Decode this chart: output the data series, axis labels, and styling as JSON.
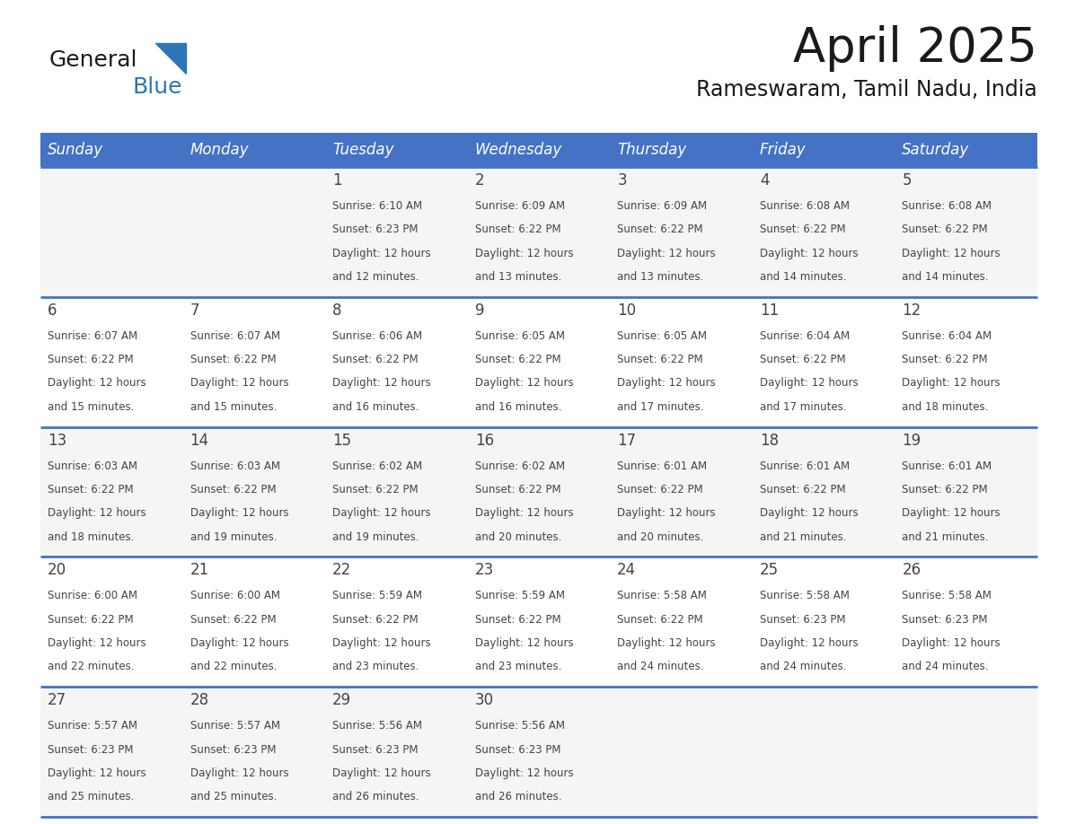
{
  "title": "April 2025",
  "subtitle": "Rameswaram, Tamil Nadu, India",
  "days_of_week": [
    "Sunday",
    "Monday",
    "Tuesday",
    "Wednesday",
    "Thursday",
    "Friday",
    "Saturday"
  ],
  "header_bg_color": "#4472C4",
  "header_text_color": "#FFFFFF",
  "cell_bg_color": "#F5F5F5",
  "cell_bg_white": "#FFFFFF",
  "separator_color": "#4472C4",
  "text_color": "#444444",
  "logo_general_color": "#1a1a1a",
  "logo_blue_color": "#2E75B6",
  "logo_tri_color": "#2E75B6",
  "calendar_data": [
    {
      "day": 1,
      "col": 2,
      "row": 0,
      "sunrise": "6:10 AM",
      "sunset": "6:23 PM",
      "daylight_min": "12 minutes."
    },
    {
      "day": 2,
      "col": 3,
      "row": 0,
      "sunrise": "6:09 AM",
      "sunset": "6:22 PM",
      "daylight_min": "13 minutes."
    },
    {
      "day": 3,
      "col": 4,
      "row": 0,
      "sunrise": "6:09 AM",
      "sunset": "6:22 PM",
      "daylight_min": "13 minutes."
    },
    {
      "day": 4,
      "col": 5,
      "row": 0,
      "sunrise": "6:08 AM",
      "sunset": "6:22 PM",
      "daylight_min": "14 minutes."
    },
    {
      "day": 5,
      "col": 6,
      "row": 0,
      "sunrise": "6:08 AM",
      "sunset": "6:22 PM",
      "daylight_min": "14 minutes."
    },
    {
      "day": 6,
      "col": 0,
      "row": 1,
      "sunrise": "6:07 AM",
      "sunset": "6:22 PM",
      "daylight_min": "15 minutes."
    },
    {
      "day": 7,
      "col": 1,
      "row": 1,
      "sunrise": "6:07 AM",
      "sunset": "6:22 PM",
      "daylight_min": "15 minutes."
    },
    {
      "day": 8,
      "col": 2,
      "row": 1,
      "sunrise": "6:06 AM",
      "sunset": "6:22 PM",
      "daylight_min": "16 minutes."
    },
    {
      "day": 9,
      "col": 3,
      "row": 1,
      "sunrise": "6:05 AM",
      "sunset": "6:22 PM",
      "daylight_min": "16 minutes."
    },
    {
      "day": 10,
      "col": 4,
      "row": 1,
      "sunrise": "6:05 AM",
      "sunset": "6:22 PM",
      "daylight_min": "17 minutes."
    },
    {
      "day": 11,
      "col": 5,
      "row": 1,
      "sunrise": "6:04 AM",
      "sunset": "6:22 PM",
      "daylight_min": "17 minutes."
    },
    {
      "day": 12,
      "col": 6,
      "row": 1,
      "sunrise": "6:04 AM",
      "sunset": "6:22 PM",
      "daylight_min": "18 minutes."
    },
    {
      "day": 13,
      "col": 0,
      "row": 2,
      "sunrise": "6:03 AM",
      "sunset": "6:22 PM",
      "daylight_min": "18 minutes."
    },
    {
      "day": 14,
      "col": 1,
      "row": 2,
      "sunrise": "6:03 AM",
      "sunset": "6:22 PM",
      "daylight_min": "19 minutes."
    },
    {
      "day": 15,
      "col": 2,
      "row": 2,
      "sunrise": "6:02 AM",
      "sunset": "6:22 PM",
      "daylight_min": "19 minutes."
    },
    {
      "day": 16,
      "col": 3,
      "row": 2,
      "sunrise": "6:02 AM",
      "sunset": "6:22 PM",
      "daylight_min": "20 minutes."
    },
    {
      "day": 17,
      "col": 4,
      "row": 2,
      "sunrise": "6:01 AM",
      "sunset": "6:22 PM",
      "daylight_min": "20 minutes."
    },
    {
      "day": 18,
      "col": 5,
      "row": 2,
      "sunrise": "6:01 AM",
      "sunset": "6:22 PM",
      "daylight_min": "21 minutes."
    },
    {
      "day": 19,
      "col": 6,
      "row": 2,
      "sunrise": "6:01 AM",
      "sunset": "6:22 PM",
      "daylight_min": "21 minutes."
    },
    {
      "day": 20,
      "col": 0,
      "row": 3,
      "sunrise": "6:00 AM",
      "sunset": "6:22 PM",
      "daylight_min": "22 minutes."
    },
    {
      "day": 21,
      "col": 1,
      "row": 3,
      "sunrise": "6:00 AM",
      "sunset": "6:22 PM",
      "daylight_min": "22 minutes."
    },
    {
      "day": 22,
      "col": 2,
      "row": 3,
      "sunrise": "5:59 AM",
      "sunset": "6:22 PM",
      "daylight_min": "23 minutes."
    },
    {
      "day": 23,
      "col": 3,
      "row": 3,
      "sunrise": "5:59 AM",
      "sunset": "6:22 PM",
      "daylight_min": "23 minutes."
    },
    {
      "day": 24,
      "col": 4,
      "row": 3,
      "sunrise": "5:58 AM",
      "sunset": "6:22 PM",
      "daylight_min": "24 minutes."
    },
    {
      "day": 25,
      "col": 5,
      "row": 3,
      "sunrise": "5:58 AM",
      "sunset": "6:23 PM",
      "daylight_min": "24 minutes."
    },
    {
      "day": 26,
      "col": 6,
      "row": 3,
      "sunrise": "5:58 AM",
      "sunset": "6:23 PM",
      "daylight_min": "24 minutes."
    },
    {
      "day": 27,
      "col": 0,
      "row": 4,
      "sunrise": "5:57 AM",
      "sunset": "6:23 PM",
      "daylight_min": "25 minutes."
    },
    {
      "day": 28,
      "col": 1,
      "row": 4,
      "sunrise": "5:57 AM",
      "sunset": "6:23 PM",
      "daylight_min": "25 minutes."
    },
    {
      "day": 29,
      "col": 2,
      "row": 4,
      "sunrise": "5:56 AM",
      "sunset": "6:23 PM",
      "daylight_min": "26 minutes."
    },
    {
      "day": 30,
      "col": 3,
      "row": 4,
      "sunrise": "5:56 AM",
      "sunset": "6:23 PM",
      "daylight_min": "26 minutes."
    }
  ]
}
